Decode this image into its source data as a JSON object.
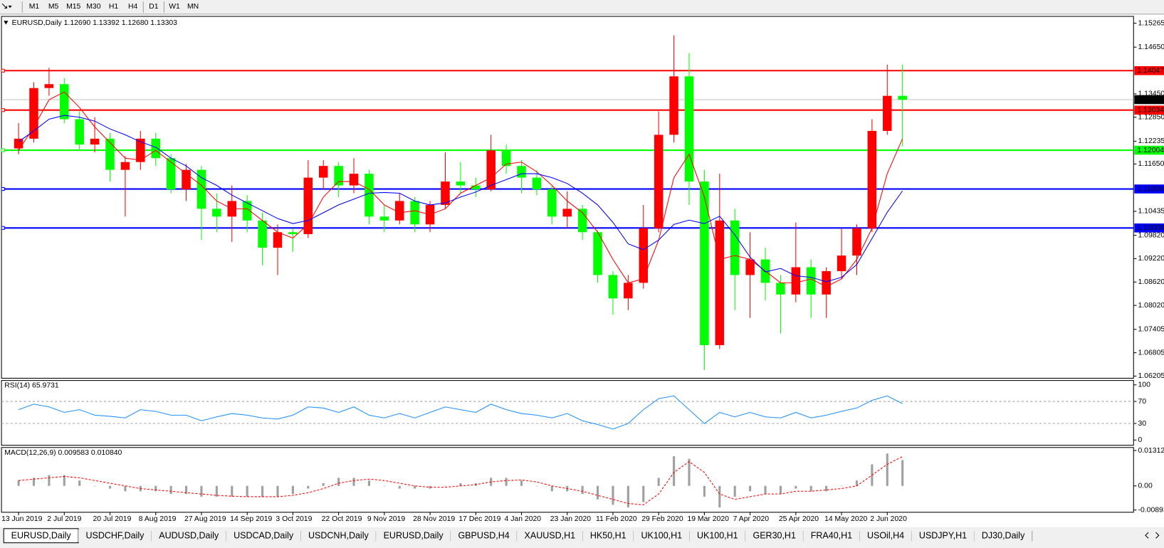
{
  "toolbar": {
    "timeframes": [
      "M1",
      "M5",
      "M15",
      "M30",
      "H1",
      "H4",
      "D1",
      "W1",
      "MN"
    ]
  },
  "chart_data": [
    {
      "type": "candlestick",
      "title": "EURUSD,Daily  1.12690 1.13392 1.12680 1.13303",
      "categories": [
        "13 Jun 2019",
        null,
        null,
        "2 Jul 2019",
        null,
        null,
        "20 Jul 2019",
        null,
        null,
        "8 Aug 2019",
        null,
        null,
        "27 Aug 2019",
        null,
        null,
        "14 Sep 2019",
        null,
        null,
        "3 Oct 2019",
        null,
        null,
        "22 Oct 2019",
        null,
        null,
        "9 Nov 2019",
        null,
        null,
        "28 Nov 2019",
        null,
        null,
        "17 Dec 2019",
        null,
        null,
        "4 Jan 2020",
        null,
        null,
        "23 Jan 2020",
        null,
        null,
        "11 Feb 2020",
        null,
        null,
        "29 Feb 2020",
        null,
        null,
        "19 Mar 2020",
        null,
        null,
        "7 Apr 2020",
        null,
        null,
        "25 Apr 2020",
        null,
        null,
        "14 May 2020",
        null,
        null,
        "2 Jun 2020",
        null
      ],
      "open": [
        1.1205,
        1.123,
        1.136,
        1.137,
        1.128,
        1.1215,
        1.123,
        1.115,
        1.117,
        1.123,
        1.118,
        1.11,
        1.115,
        1.105,
        1.103,
        1.107,
        1.102,
        1.095,
        1.099,
        1.0985,
        1.113,
        1.116,
        1.111,
        1.114,
        1.103,
        1.102,
        1.107,
        1.101,
        1.106,
        1.112,
        1.111,
        1.11,
        1.12,
        1.116,
        1.113,
        1.11,
        1.103,
        1.105,
        1.099,
        1.088,
        1.082,
        1.086,
        1.1,
        1.124,
        1.139,
        1.112,
        1.07,
        1.102,
        1.088,
        1.092,
        1.086,
        1.083,
        1.09,
        1.083,
        1.089,
        1.093,
        1.1,
        1.125,
        1.134
      ],
      "high": [
        1.127,
        1.1375,
        1.1412,
        1.1385,
        1.13,
        1.1285,
        1.1245,
        1.1185,
        1.125,
        1.1245,
        1.119,
        1.1165,
        1.116,
        1.109,
        1.111,
        1.1085,
        1.104,
        1.101,
        1.1,
        1.1175,
        1.1175,
        1.117,
        1.118,
        1.115,
        1.106,
        1.109,
        1.108,
        1.107,
        1.1195,
        1.117,
        1.113,
        1.124,
        1.1215,
        1.1175,
        1.115,
        1.111,
        1.1095,
        1.106,
        1.0995,
        1.089,
        1.088,
        1.106,
        1.13,
        1.1495,
        1.145,
        1.115,
        1.114,
        1.105,
        1.099,
        1.095,
        1.088,
        1.1015,
        1.092,
        1.09,
        1.1,
        1.101,
        1.128,
        1.142,
        1.142
      ],
      "low": [
        1.119,
        1.122,
        1.134,
        1.127,
        1.12,
        1.1195,
        1.112,
        1.103,
        1.115,
        1.116,
        1.109,
        1.107,
        1.097,
        1.099,
        1.0965,
        1.099,
        1.0905,
        1.088,
        1.094,
        1.0975,
        1.11,
        1.108,
        1.109,
        1.101,
        1.099,
        1.101,
        1.099,
        1.099,
        1.105,
        1.109,
        1.108,
        1.1095,
        1.114,
        1.109,
        1.1085,
        1.101,
        1.1,
        1.097,
        1.086,
        1.0778,
        1.079,
        1.0845,
        1.099,
        1.122,
        1.106,
        1.0636,
        1.069,
        1.079,
        1.077,
        1.0815,
        1.073,
        1.081,
        1.077,
        1.077,
        1.087,
        1.088,
        1.099,
        1.124,
        1.121
      ],
      "close": [
        1.123,
        1.136,
        1.137,
        1.128,
        1.1215,
        1.123,
        1.115,
        1.117,
        1.123,
        1.118,
        1.11,
        1.115,
        1.105,
        1.103,
        1.107,
        1.102,
        1.095,
        1.099,
        1.0985,
        1.113,
        1.116,
        1.111,
        1.114,
        1.103,
        1.102,
        1.107,
        1.101,
        1.106,
        1.112,
        1.111,
        1.11,
        1.12,
        1.116,
        1.113,
        1.11,
        1.103,
        1.105,
        1.099,
        1.088,
        1.082,
        1.086,
        1.1,
        1.124,
        1.139,
        1.112,
        1.07,
        1.102,
        1.088,
        1.092,
        1.086,
        1.083,
        1.09,
        1.083,
        1.089,
        1.093,
        1.1,
        1.125,
        1.134,
        1.133
      ],
      "up_color": "#ff0000",
      "down_color": "#00ff00",
      "lines": [
        {
          "color": "#ff0000",
          "values": [
            1.12,
            1.126,
            1.133,
            1.135,
            1.131,
            1.126,
            1.122,
            1.118,
            1.1175,
            1.12,
            1.117,
            1.114,
            1.111,
            1.107,
            1.105,
            1.105,
            1.102,
            1.099,
            1.0975,
            1.101,
            1.108,
            1.112,
            1.112,
            1.11,
            1.106,
            1.104,
            1.1045,
            1.1035,
            1.105,
            1.109,
            1.111,
            1.113,
            1.1165,
            1.117,
            1.1145,
            1.111,
            1.107,
            1.104,
            1.099,
            1.092,
            1.086,
            1.087,
            1.097,
            1.113,
            1.119,
            1.108,
            1.092,
            1.093,
            1.092,
            1.089,
            1.086,
            1.086,
            1.087,
            1.085,
            1.087,
            1.092,
            1.1,
            1.114,
            1.123
          ]
        },
        {
          "color": "#0000ff",
          "values": [
            1.1222,
            1.125,
            1.128,
            1.129,
            1.1285,
            1.1275,
            1.1255,
            1.124,
            1.1222,
            1.1208,
            1.118,
            1.116,
            1.113,
            1.111,
            1.1085,
            1.1065,
            1.1045,
            1.1025,
            1.1012,
            1.102,
            1.104,
            1.106,
            1.1075,
            1.109,
            1.1092,
            1.109,
            1.107,
            1.106,
            1.1065,
            1.108,
            1.1093,
            1.111,
            1.1125,
            1.114,
            1.114,
            1.113,
            1.1115,
            1.109,
            1.106,
            1.1015,
            1.096,
            1.0945,
            1.097,
            1.101,
            1.1021,
            1.1012,
            1.1031,
            1.0983,
            1.0926,
            1.0888,
            1.0897,
            1.0878,
            1.0874,
            1.0863,
            1.0874,
            1.0907,
            1.0974,
            1.1041,
            1.1096
          ]
        }
      ],
      "levels": [
        {
          "value": 1.14047,
          "color": "#ff0000"
        },
        {
          "value": 1.13034,
          "color": "#ff0000"
        },
        {
          "value": 1.12004,
          "color": "#00ff00"
        },
        {
          "value": 1.11009,
          "color": "#0000ff"
        },
        {
          "value": 1.10008,
          "color": "#0000ff"
        }
      ],
      "current_price": {
        "value": 1.13303,
        "color": "#000000"
      },
      "ylim": [
        1.0615,
        1.1544
      ],
      "yticks": [
        1.15265,
        {
          "value": 1.1465,
          "label": "1.14650"
        },
        {
          "value": 1.1345,
          "label": "1.13450"
        },
        {
          "value": 1.1285,
          "label": "1.12850"
        },
        1.12235,
        {
          "value": 1.1165,
          "label": "1.11650"
        },
        1.10435,
        {
          "value": 1.0982,
          "label": "1.09820"
        },
        {
          "value": 1.0922,
          "label": "1.09220"
        },
        {
          "value": 1.0862,
          "label": "1.08620"
        },
        {
          "value": 1.0802,
          "label": "1.08020"
        },
        1.07405,
        1.06805,
        1.06205
      ]
    },
    {
      "type": "line",
      "title": "RSI(14) 65.9731",
      "values": [
        55,
        65,
        60,
        50,
        55,
        45,
        43,
        40,
        55,
        52,
        45,
        45,
        35,
        42,
        48,
        45,
        40,
        38,
        45,
        60,
        58,
        50,
        60,
        45,
        40,
        48,
        40,
        50,
        60,
        55,
        50,
        65,
        55,
        48,
        45,
        40,
        48,
        35,
        28,
        20,
        30,
        55,
        75,
        80,
        55,
        30,
        50,
        42,
        50,
        42,
        40,
        50,
        40,
        45,
        52,
        58,
        72,
        80,
        65.9731
      ],
      "color": "#1e90ff",
      "levels": [
        70,
        30
      ],
      "ylim": [
        -9.5,
        108
      ],
      "yticks": [
        100,
        70,
        30,
        0
      ]
    },
    {
      "type": "macd",
      "title": "MACD(12,26,9) 0.009583 0.010840",
      "histogram": [
        0.002,
        0.003,
        0.004,
        0.004,
        0.002,
        0.0,
        -0.001,
        -0.002,
        -0.002,
        -0.002,
        -0.003,
        -0.003,
        -0.004,
        -0.004,
        -0.004,
        -0.004,
        -0.004,
        -0.004,
        -0.003,
        -0.001,
        0.001,
        0.003,
        0.003,
        0.002,
        0.0,
        -0.001,
        -0.001,
        -0.001,
        0.0,
        0.001,
        0.001,
        0.003,
        0.003,
        0.002,
        0.0,
        -0.002,
        -0.002,
        -0.003,
        -0.005,
        -0.007,
        -0.008,
        -0.006,
        0.003,
        0.011,
        0.01,
        -0.004,
        -0.008,
        -0.004,
        -0.002,
        -0.003,
        -0.003,
        -0.001,
        -0.002,
        -0.002,
        0.0,
        0.002,
        0.008,
        0.012,
        0.009583
      ],
      "signal": [
        0.002,
        0.0025,
        0.003,
        0.0035,
        0.003,
        0.002,
        0.001,
        0.0,
        -0.001,
        -0.0015,
        -0.002,
        -0.0025,
        -0.003,
        -0.0035,
        -0.0038,
        -0.004,
        -0.004,
        -0.004,
        -0.0035,
        -0.0025,
        -0.001,
        0.001,
        0.002,
        0.0025,
        0.002,
        0.001,
        0.0,
        -0.0005,
        -0.0005,
        0.0,
        0.0005,
        0.0015,
        0.002,
        0.0022,
        0.0015,
        0.0,
        -0.001,
        -0.002,
        -0.0035,
        -0.005,
        -0.0065,
        -0.007,
        -0.003,
        0.005,
        0.009,
        0.005,
        -0.003,
        -0.005,
        -0.004,
        -0.003,
        -0.003,
        -0.002,
        -0.002,
        -0.0015,
        -0.001,
        0.0,
        0.004,
        0.008,
        0.01084
      ],
      "histogram_color": "#a0a0a0",
      "signal_color": "#ff0000",
      "ylim": [
        -0.00977,
        0.01424
      ],
      "yticks": [
        0.013121,
        {
          "value": 0,
          "label": "0.00"
        },
        -0.00893
      ]
    }
  ],
  "tabs": {
    "items": [
      "EURUSD,Daily",
      "USDCHF,Daily",
      "AUDUSD,Daily",
      "USDCAD,Daily",
      "USDCNH,Daily",
      "EURUSD,Daily",
      "GBPUSD,H4",
      "XAUUSD,H1",
      "HK50,H1",
      "UK100,H1",
      "UK100,H1",
      "GER30,H1",
      "FRA40,H1",
      "USOil,H4",
      "USDJPY,H1",
      "DJ30,Daily"
    ],
    "active": 0
  }
}
